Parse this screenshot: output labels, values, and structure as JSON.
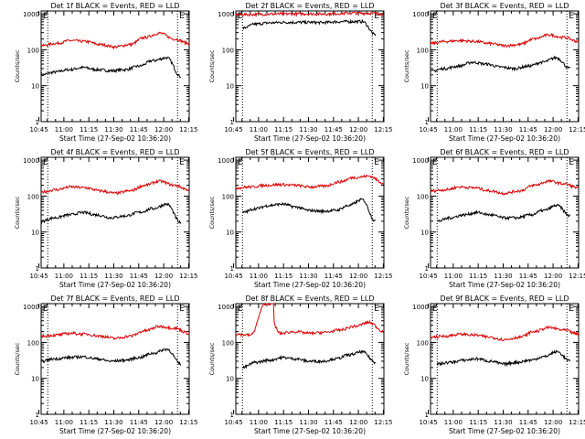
{
  "colors": {
    "events": "#000000",
    "lld": "#dd0000",
    "axis": "#000000",
    "background": "#ffffff"
  },
  "shared": {
    "xlabel": "Start Time (27-Sep-02 10:36:20)",
    "ylabel": "Counts/sec",
    "x_ticks": [
      "10:45",
      "11:00",
      "11:15",
      "11:30",
      "11:45",
      "12:00",
      "12:15"
    ],
    "y_ticks": [
      "1",
      "10",
      "100",
      "1000"
    ],
    "marker_label": "E",
    "xlim_minutes": [
      10.0,
      99.0
    ],
    "ylim": [
      1,
      1200
    ],
    "y_scale": "log"
  },
  "chart_data": [
    {
      "type": "line",
      "title": "Det 1f BLACK = Events, RED = LLD",
      "series": [
        {
          "name": "BLACK = Events",
          "color": "black",
          "x_start": 10.0,
          "x_end": 94.0,
          "values": [
            20,
            24,
            28,
            32,
            28,
            26,
            28,
            35,
            50,
            60,
            18
          ]
        },
        {
          "name": "RED = LLD",
          "color": "red",
          "x_start": 10.0,
          "x_end": 99.0,
          "values": [
            130,
            150,
            180,
            170,
            140,
            120,
            140,
            220,
            290,
            200,
            150
          ]
        }
      ],
      "markers": [
        {
          "x": 14.0,
          "style": "dotted"
        },
        {
          "x": 92.0,
          "style": "dotted"
        }
      ]
    },
    {
      "type": "line",
      "title": "Det 2f BLACK = Events, RED = LLD",
      "series": [
        {
          "name": "BLACK = Events",
          "color": "black",
          "x_start": 14.0,
          "x_end": 94.0,
          "values": [
            400,
            520,
            560,
            580,
            580,
            580,
            570,
            600,
            610,
            610,
            260
          ]
        },
        {
          "name": "RED = LLD",
          "color": "red",
          "x_start": 10.0,
          "x_end": 99.0,
          "values": [
            950,
            960,
            980,
            990,
            1000,
            1000,
            990,
            1020,
            1050,
            1040,
            1000
          ]
        }
      ],
      "markers": [
        {
          "x": 14.0,
          "style": "dotted"
        },
        {
          "x": 92.0,
          "style": "dotted"
        }
      ]
    },
    {
      "type": "line",
      "title": "Det 3f BLACK = Events, RED = LLD",
      "series": [
        {
          "name": "BLACK = Events",
          "color": "black",
          "x_start": 10.0,
          "x_end": 94.0,
          "values": [
            25,
            30,
            35,
            45,
            40,
            33,
            30,
            35,
            45,
            60,
            30
          ]
        },
        {
          "name": "RED = LLD",
          "color": "red",
          "x_start": 10.0,
          "x_end": 99.0,
          "values": [
            150,
            170,
            180,
            170,
            150,
            130,
            140,
            200,
            260,
            220,
            170
          ]
        }
      ],
      "markers": [
        {
          "x": 14.0,
          "style": "dotted"
        },
        {
          "x": 92.0,
          "style": "dotted"
        }
      ]
    },
    {
      "type": "line",
      "title": "Det 4f BLACK = Events, RED = LLD",
      "series": [
        {
          "name": "BLACK = Events",
          "color": "black",
          "x_start": 10.0,
          "x_end": 94.0,
          "values": [
            20,
            25,
            30,
            35,
            30,
            25,
            28,
            35,
            45,
            60,
            18
          ]
        },
        {
          "name": "RED = LLD",
          "color": "red",
          "x_start": 10.0,
          "x_end": 99.0,
          "values": [
            130,
            150,
            180,
            170,
            140,
            120,
            140,
            200,
            260,
            200,
            150
          ]
        }
      ],
      "markers": [
        {
          "x": 14.0,
          "style": "dotted"
        },
        {
          "x": 92.0,
          "style": "dotted"
        }
      ]
    },
    {
      "type": "line",
      "title": "Det 5f BLACK = Events, RED = LLD",
      "series": [
        {
          "name": "BLACK = Events",
          "color": "black",
          "x_start": 14.0,
          "x_end": 94.0,
          "values": [
            35,
            45,
            55,
            60,
            50,
            40,
            38,
            40,
            55,
            80,
            20
          ]
        },
        {
          "name": "RED = LLD",
          "color": "red",
          "x_start": 10.0,
          "x_end": 99.0,
          "values": [
            170,
            180,
            200,
            210,
            200,
            180,
            190,
            250,
            330,
            360,
            230
          ]
        }
      ],
      "markers": [
        {
          "x": 14.0,
          "style": "dotted"
        },
        {
          "x": 92.0,
          "style": "dotted"
        }
      ]
    },
    {
      "type": "line",
      "title": "Det 6f BLACK = Events, RED = LLD",
      "series": [
        {
          "name": "BLACK = Events",
          "color": "black",
          "x_start": 14.0,
          "x_end": 94.0,
          "values": [
            20,
            25,
            30,
            35,
            30,
            25,
            25,
            30,
            40,
            55,
            28
          ]
        },
        {
          "name": "RED = LLD",
          "color": "red",
          "x_start": 10.0,
          "x_end": 99.0,
          "values": [
            140,
            150,
            180,
            170,
            140,
            120,
            140,
            200,
            260,
            220,
            170
          ]
        }
      ],
      "markers": [
        {
          "x": 14.0,
          "style": "dotted"
        },
        {
          "x": 92.0,
          "style": "dotted"
        }
      ]
    },
    {
      "type": "line",
      "title": "Det 7f BLACK = Events, RED = LLD",
      "series": [
        {
          "name": "BLACK = Events",
          "color": "black",
          "x_start": 10.0,
          "x_end": 94.0,
          "values": [
            30,
            35,
            38,
            40,
            35,
            30,
            32,
            38,
            50,
            65,
            25
          ]
        },
        {
          "name": "RED = LLD",
          "color": "red",
          "x_start": 10.0,
          "x_end": 99.0,
          "values": [
            150,
            160,
            180,
            170,
            150,
            130,
            150,
            210,
            280,
            250,
            180
          ]
        }
      ],
      "markers": [
        {
          "x": 14.0,
          "style": "dotted"
        },
        {
          "x": 92.0,
          "style": "dotted"
        }
      ]
    },
    {
      "type": "line",
      "title": "Det 8f BLACK = Events, RED = LLD",
      "series": [
        {
          "name": "BLACK = Events",
          "color": "black",
          "x_start": 14.0,
          "x_end": 94.0,
          "values": [
            20,
            28,
            32,
            38,
            35,
            30,
            30,
            35,
            45,
            55,
            28
          ]
        },
        {
          "name": "RED = LLD",
          "color": "red",
          "x_start": 10.0,
          "x_end": 99.0,
          "values": [
            170,
            160,
            1200,
            180,
            200,
            180,
            190,
            220,
            280,
            360,
            200
          ],
          "spike": {
            "x_from": 27.0,
            "x_to": 33.0,
            "peak": 1200
          }
        }
      ],
      "markers": [
        {
          "x": 14.0,
          "style": "dotted"
        },
        {
          "x": 92.0,
          "style": "dotted"
        }
      ]
    },
    {
      "type": "line",
      "title": "Det 9f BLACK = Events, RED = LLD",
      "series": [
        {
          "name": "BLACK = Events",
          "color": "black",
          "x_start": 14.0,
          "x_end": 94.0,
          "values": [
            25,
            28,
            32,
            35,
            30,
            25,
            28,
            32,
            40,
            55,
            30
          ]
        },
        {
          "name": "RED = LLD",
          "color": "red",
          "x_start": 10.0,
          "x_end": 99.0,
          "values": [
            140,
            150,
            170,
            160,
            140,
            120,
            140,
            200,
            260,
            220,
            170
          ]
        }
      ],
      "markers": [
        {
          "x": 14.0,
          "style": "dotted"
        },
        {
          "x": 92.0,
          "style": "dotted"
        }
      ]
    }
  ]
}
